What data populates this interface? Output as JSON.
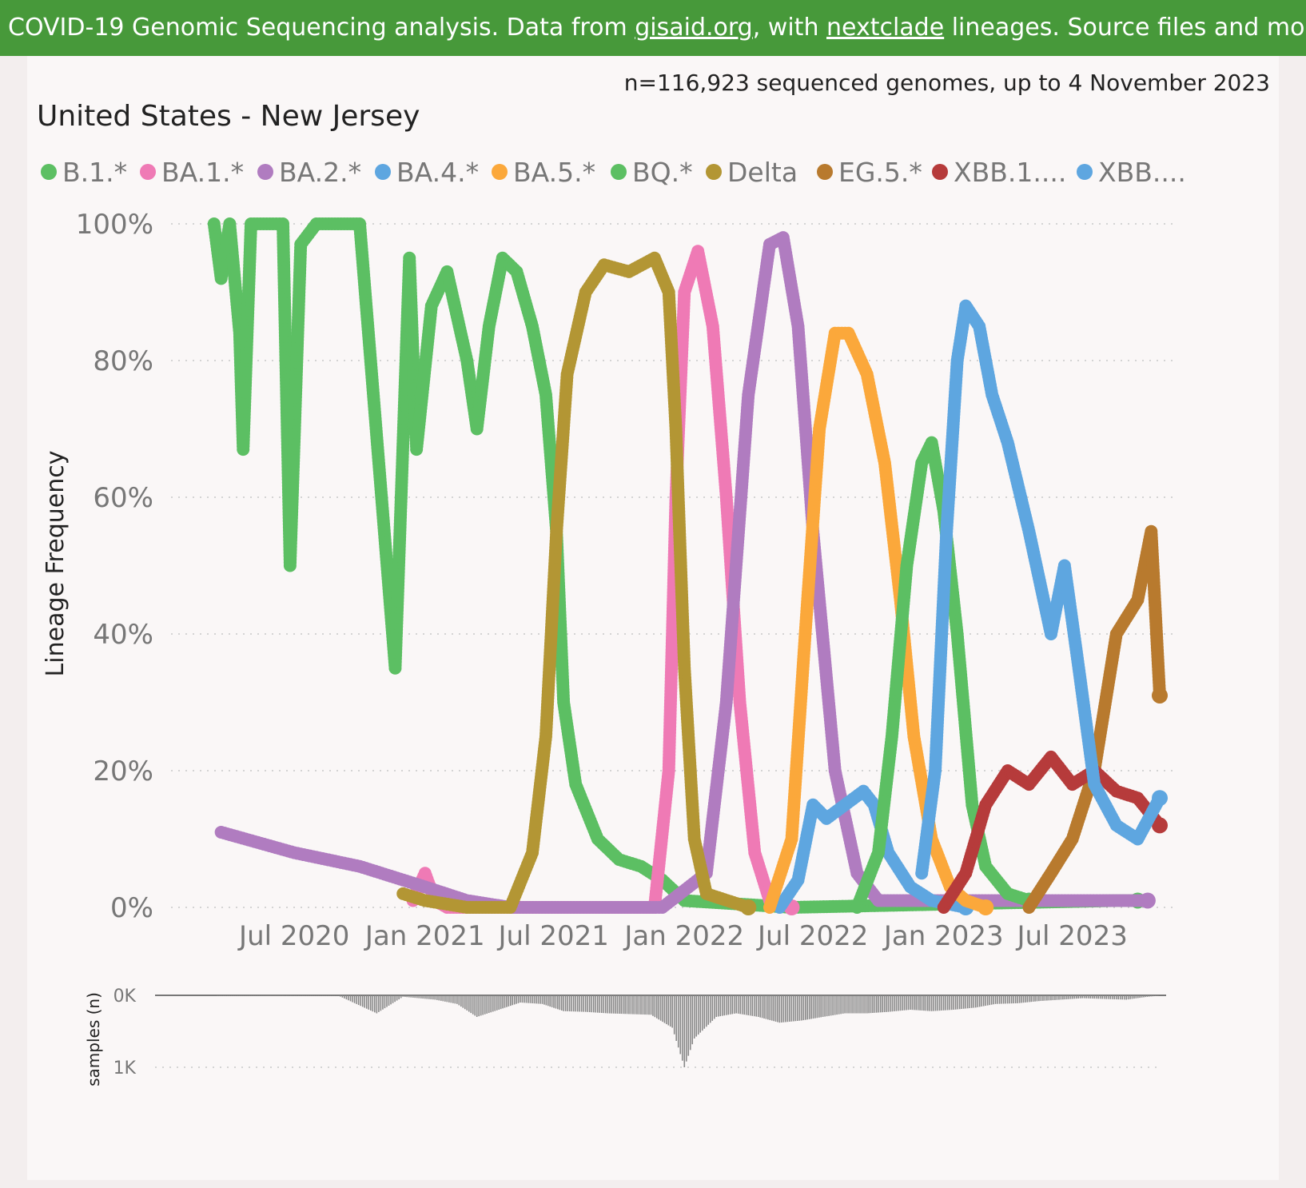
{
  "banner": {
    "prefix": "COVID-19 Genomic Sequencing analysis. Data from ",
    "link1": "gisaid.org",
    "middle": ", with ",
    "link2": "nextclade",
    "suffix": " lineages. Source files and more info on"
  },
  "header": {
    "subtitle": "n=116,923 sequenced genomes, up to 4 November 2023",
    "title": "United States - New Jersey"
  },
  "colors": {
    "B.1.*": "#5cbf63",
    "BA.1.*": "#ef7ab5",
    "BA.2.*": "#b07cc0",
    "BA.4.*": "#5ea6e0",
    "BA.5.*": "#fba83b",
    "BQ.*": "#5cbf63",
    "Delta": "#b39634",
    "EG.5.*": "#b87a2e",
    "XBB.1....": "#b63b3b",
    "XBB....": "#5ea6e0"
  },
  "chart_data": [
    {
      "type": "scatter",
      "ylabel": "Lineage Frequency",
      "xlabel": "",
      "x_ticks": [
        "Jul 2020",
        "Jan 2021",
        "Jul 2021",
        "Jan 2022",
        "Jul 2022",
        "Jan 2023",
        "Jul 2023"
      ],
      "y_ticks": [
        "0%",
        "20%",
        "40%",
        "60%",
        "80%",
        "100%"
      ],
      "ylim": [
        0,
        100
      ],
      "xlim": [
        "2020-02-01",
        "2023-11-10"
      ],
      "grid": true,
      "legend": "top",
      "legend_items": [
        "B.1.*",
        "BA.1.*",
        "BA.2.*",
        "BA.4.*",
        "BA.5.*",
        "BQ.*",
        "Delta",
        "EG.5.*",
        "XBB.1....",
        "XBB...."
      ],
      "series": [
        {
          "name": "B.1.*",
          "points": [
            [
              "2020-03-10",
              100
            ],
            [
              "2020-03-20",
              92
            ],
            [
              "2020-04-01",
              100
            ],
            [
              "2020-04-15",
              84
            ],
            [
              "2020-04-20",
              67
            ],
            [
              "2020-05-01",
              100
            ],
            [
              "2020-06-01",
              100
            ],
            [
              "2020-06-15",
              100
            ],
            [
              "2020-06-25",
              50
            ],
            [
              "2020-07-10",
              97
            ],
            [
              "2020-08-01",
              100
            ],
            [
              "2020-10-01",
              100
            ],
            [
              "2020-11-20",
              35
            ],
            [
              "2020-12-10",
              95
            ],
            [
              "2020-12-20",
              67
            ],
            [
              "2021-01-10",
              88
            ],
            [
              "2021-02-01",
              93
            ],
            [
              "2021-03-01",
              80
            ],
            [
              "2021-03-15",
              70
            ],
            [
              "2021-04-01",
              85
            ],
            [
              "2021-04-20",
              95
            ],
            [
              "2021-05-10",
              93
            ],
            [
              "2021-06-01",
              85
            ],
            [
              "2021-06-20",
              75
            ],
            [
              "2021-07-05",
              55
            ],
            [
              "2021-07-15",
              30
            ],
            [
              "2021-08-01",
              18
            ],
            [
              "2021-09-01",
              10
            ],
            [
              "2021-10-01",
              7
            ],
            [
              "2021-11-01",
              6
            ],
            [
              "2021-12-01",
              4
            ],
            [
              "2022-01-01",
              1
            ],
            [
              "2022-06-01",
              0
            ],
            [
              "2023-09-01",
              1
            ],
            [
              "2023-10-01",
              1
            ]
          ]
        },
        {
          "name": "BA.1.*",
          "points": [
            [
              "2020-12-15",
              1
            ],
            [
              "2021-01-01",
              5
            ],
            [
              "2021-01-15",
              1
            ],
            [
              "2021-02-01",
              0
            ],
            [
              "2021-11-20",
              0
            ],
            [
              "2021-12-10",
              20
            ],
            [
              "2021-12-20",
              60
            ],
            [
              "2022-01-01",
              90
            ],
            [
              "2022-01-20",
              96
            ],
            [
              "2022-02-10",
              85
            ],
            [
              "2022-03-01",
              60
            ],
            [
              "2022-03-20",
              30
            ],
            [
              "2022-04-10",
              8
            ],
            [
              "2022-05-01",
              1
            ],
            [
              "2022-06-01",
              0
            ]
          ]
        },
        {
          "name": "BA.2.*",
          "points": [
            [
              "2020-03-20",
              11
            ],
            [
              "2020-07-01",
              8
            ],
            [
              "2020-10-01",
              6
            ],
            [
              "2021-01-01",
              3
            ],
            [
              "2021-03-01",
              1
            ],
            [
              "2021-05-01",
              0
            ],
            [
              "2021-12-01",
              0
            ],
            [
              "2022-02-01",
              5
            ],
            [
              "2022-03-01",
              30
            ],
            [
              "2022-04-01",
              75
            ],
            [
              "2022-05-01",
              97
            ],
            [
              "2022-05-20",
              98
            ],
            [
              "2022-06-10",
              85
            ],
            [
              "2022-07-01",
              55
            ],
            [
              "2022-08-01",
              20
            ],
            [
              "2022-09-01",
              5
            ],
            [
              "2022-10-01",
              1
            ],
            [
              "2022-12-01",
              1
            ],
            [
              "2023-10-15",
              1
            ]
          ]
        },
        {
          "name": "BA.4.*",
          "points": [
            [
              "2022-05-15",
              0
            ],
            [
              "2022-06-10",
              4
            ],
            [
              "2022-07-01",
              15
            ],
            [
              "2022-07-20",
              13
            ],
            [
              "2022-08-15",
              15
            ],
            [
              "2022-09-10",
              17
            ],
            [
              "2022-09-25",
              15
            ],
            [
              "2022-10-15",
              8
            ],
            [
              "2022-11-15",
              3
            ],
            [
              "2022-12-15",
              1
            ],
            [
              "2023-02-01",
              0
            ]
          ]
        },
        {
          "name": "BA.5.*",
          "points": [
            [
              "2022-05-01",
              0
            ],
            [
              "2022-06-01",
              10
            ],
            [
              "2022-06-20",
              40
            ],
            [
              "2022-07-10",
              70
            ],
            [
              "2022-08-01",
              84
            ],
            [
              "2022-08-20",
              84
            ],
            [
              "2022-09-15",
              78
            ],
            [
              "2022-10-10",
              65
            ],
            [
              "2022-11-01",
              45
            ],
            [
              "2022-11-20",
              25
            ],
            [
              "2022-12-15",
              10
            ],
            [
              "2023-01-10",
              3
            ],
            [
              "2023-02-01",
              1
            ],
            [
              "2023-03-01",
              0
            ]
          ]
        },
        {
          "name": "BQ.*",
          "points": [
            [
              "2022-09-01",
              0
            ],
            [
              "2022-10-01",
              8
            ],
            [
              "2022-10-20",
              25
            ],
            [
              "2022-11-10",
              50
            ],
            [
              "2022-12-01",
              65
            ],
            [
              "2022-12-15",
              68
            ],
            [
              "2023-01-01",
              58
            ],
            [
              "2023-01-20",
              40
            ],
            [
              "2023-02-10",
              15
            ],
            [
              "2023-03-01",
              6
            ],
            [
              "2023-04-01",
              2
            ],
            [
              "2023-05-01",
              1
            ]
          ]
        },
        {
          "name": "Delta",
          "points": [
            [
              "2020-12-01",
              2
            ],
            [
              "2021-01-01",
              1
            ],
            [
              "2021-03-01",
              0
            ],
            [
              "2021-05-01",
              0
            ],
            [
              "2021-06-01",
              8
            ],
            [
              "2021-06-20",
              25
            ],
            [
              "2021-07-05",
              55
            ],
            [
              "2021-07-20",
              78
            ],
            [
              "2021-08-15",
              90
            ],
            [
              "2021-09-10",
              94
            ],
            [
              "2021-10-15",
              93
            ],
            [
              "2021-11-20",
              95
            ],
            [
              "2021-12-10",
              90
            ],
            [
              "2021-12-20",
              70
            ],
            [
              "2022-01-01",
              35
            ],
            [
              "2022-01-15",
              10
            ],
            [
              "2022-02-01",
              2
            ],
            [
              "2022-04-01",
              0
            ]
          ]
        },
        {
          "name": "EG.5.*",
          "points": [
            [
              "2023-05-01",
              0
            ],
            [
              "2023-06-01",
              5
            ],
            [
              "2023-07-01",
              10
            ],
            [
              "2023-08-01",
              20
            ],
            [
              "2023-09-01",
              40
            ],
            [
              "2023-10-01",
              45
            ],
            [
              "2023-10-20",
              55
            ],
            [
              "2023-11-01",
              31
            ]
          ]
        },
        {
          "name": "XBB.1....",
          "points": [
            [
              "2023-01-01",
              0
            ],
            [
              "2023-02-01",
              5
            ],
            [
              "2023-03-01",
              15
            ],
            [
              "2023-04-01",
              20
            ],
            [
              "2023-05-01",
              18
            ],
            [
              "2023-06-01",
              22
            ],
            [
              "2023-07-01",
              18
            ],
            [
              "2023-08-01",
              20
            ],
            [
              "2023-09-01",
              17
            ],
            [
              "2023-10-01",
              16
            ],
            [
              "2023-11-01",
              12
            ]
          ]
        },
        {
          "name": "XBB....",
          "points": [
            [
              "2022-12-01",
              5
            ],
            [
              "2022-12-20",
              20
            ],
            [
              "2023-01-05",
              55
            ],
            [
              "2023-01-20",
              80
            ],
            [
              "2023-02-01",
              88
            ],
            [
              "2023-02-20",
              85
            ],
            [
              "2023-03-10",
              75
            ],
            [
              "2023-04-01",
              68
            ],
            [
              "2023-05-01",
              55
            ],
            [
              "2023-06-01",
              40
            ],
            [
              "2023-06-20",
              50
            ],
            [
              "2023-07-10",
              35
            ],
            [
              "2023-08-01",
              18
            ],
            [
              "2023-09-01",
              12
            ],
            [
              "2023-10-01",
              10
            ],
            [
              "2023-11-01",
              16
            ]
          ]
        }
      ]
    },
    {
      "type": "bar",
      "ylabel": "samples (n)",
      "y_ticks": [
        "0K",
        "1K"
      ],
      "ylim": [
        0,
        1000
      ],
      "xlim": [
        "2020-02-01",
        "2023-11-10"
      ],
      "series": [
        {
          "name": "samples (n)",
          "points": [
            [
              "2020-03-15",
              5
            ],
            [
              "2020-06-01",
              10
            ],
            [
              "2020-09-01",
              5
            ],
            [
              "2020-10-25",
              250
            ],
            [
              "2020-12-01",
              20
            ],
            [
              "2021-01-15",
              60
            ],
            [
              "2021-02-15",
              120
            ],
            [
              "2021-03-15",
              300
            ],
            [
              "2021-04-15",
              200
            ],
            [
              "2021-05-15",
              100
            ],
            [
              "2021-06-15",
              120
            ],
            [
              "2021-07-15",
              220
            ],
            [
              "2021-08-15",
              230
            ],
            [
              "2021-09-15",
              250
            ],
            [
              "2021-10-15",
              260
            ],
            [
              "2021-11-15",
              270
            ],
            [
              "2021-12-15",
              450
            ],
            [
              "2022-01-01",
              1000
            ],
            [
              "2022-01-15",
              600
            ],
            [
              "2022-02-15",
              300
            ],
            [
              "2022-03-15",
              250
            ],
            [
              "2022-04-15",
              300
            ],
            [
              "2022-05-15",
              380
            ],
            [
              "2022-06-15",
              350
            ],
            [
              "2022-07-15",
              300
            ],
            [
              "2022-08-15",
              250
            ],
            [
              "2022-09-15",
              250
            ],
            [
              "2022-10-15",
              230
            ],
            [
              "2022-11-15",
              200
            ],
            [
              "2022-12-15",
              220
            ],
            [
              "2023-01-15",
              200
            ],
            [
              "2023-02-15",
              170
            ],
            [
              "2023-03-15",
              120
            ],
            [
              "2023-04-15",
              110
            ],
            [
              "2023-05-15",
              80
            ],
            [
              "2023-06-15",
              60
            ],
            [
              "2023-07-15",
              40
            ],
            [
              "2023-08-15",
              50
            ],
            [
              "2023-09-15",
              60
            ],
            [
              "2023-10-15",
              20
            ],
            [
              "2023-11-01",
              5
            ]
          ]
        }
      ]
    }
  ]
}
